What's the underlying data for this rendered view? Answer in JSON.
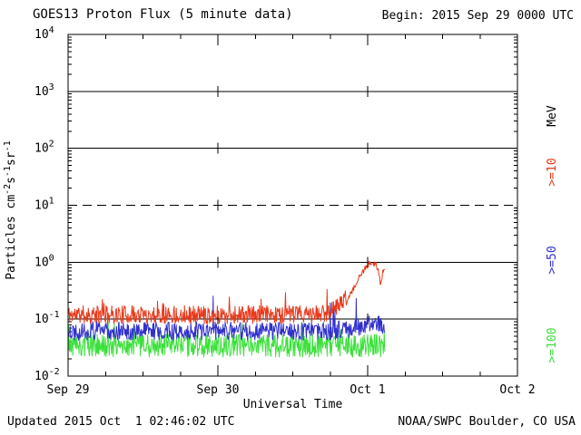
{
  "chart_data": {
    "type": "line",
    "title": "GOES13 Proton Flux (5 minute data)",
    "begin_label": "Begin: 2015 Sep 29 0000 UTC",
    "xlabel": "Universal Time",
    "ylabel_segments": [
      [
        "Particles cm",
        false
      ],
      [
        "-2",
        true
      ],
      [
        "s",
        false
      ],
      [
        "-1",
        true
      ],
      [
        "sr",
        false
      ],
      [
        "-1",
        true
      ]
    ],
    "mev_label": "MeV",
    "footer_left": "Updated 2015 Oct  1 02:46:02 UTC",
    "footer_right": "NOAA/SWPC Boulder, CO USA",
    "x_ticks": [
      "Sep 29",
      "Sep 30",
      "Oct 1",
      "Oct 2"
    ],
    "x_tick_hours": [
      0,
      24,
      48,
      72
    ],
    "x_range_hours": [
      0,
      72
    ],
    "ylim": [
      0.01,
      10000
    ],
    "y_tick_exponents": [
      4,
      3,
      2,
      1,
      0,
      -1,
      -2
    ],
    "solid_gridlines": [
      1000,
      100,
      1,
      0.1
    ],
    "dashed_gridline": 10,
    "day_gridlines_hours": [
      24,
      48
    ],
    "grid_color": "#000000",
    "data_end_hour": 50.77,
    "sample_minutes": 5,
    "series": [
      {
        "name": ">=10 MeV proton flux",
        "label": ">=10",
        "color": "#e8391b",
        "anchors_h": [
          0,
          40,
          42,
          44,
          45.5,
          46.5,
          47.5,
          48.3,
          48.8,
          49.3,
          49.7,
          50.1,
          50.4,
          50.77
        ],
        "anchors_v": [
          0.12,
          0.12,
          0.14,
          0.2,
          0.3,
          0.5,
          0.75,
          0.95,
          0.85,
          1.0,
          0.7,
          0.4,
          0.65,
          0.7
        ],
        "noise_dec": 0.16,
        "spike_prob": 0.02,
        "spike_dec": 0.3,
        "seed": 11
      },
      {
        "name": ">=50 MeV proton flux",
        "label": ">=50",
        "color": "#3030cc",
        "anchors_h": [
          0,
          42,
          46,
          48,
          50.77
        ],
        "anchors_v": [
          0.062,
          0.062,
          0.07,
          0.08,
          0.08
        ],
        "noise_dec": 0.16,
        "spike_prob": 0.015,
        "spike_dec": 0.5,
        "seed": 22
      },
      {
        "name": ">=100 MeV proton flux",
        "label": ">=100",
        "color": "#3ce03c",
        "anchors_h": [
          0,
          50.77
        ],
        "anchors_v": [
          0.034,
          0.034
        ],
        "noise_dec": 0.2,
        "spike_prob": 0.02,
        "spike_dec": 0.35,
        "seed": 33
      }
    ]
  }
}
